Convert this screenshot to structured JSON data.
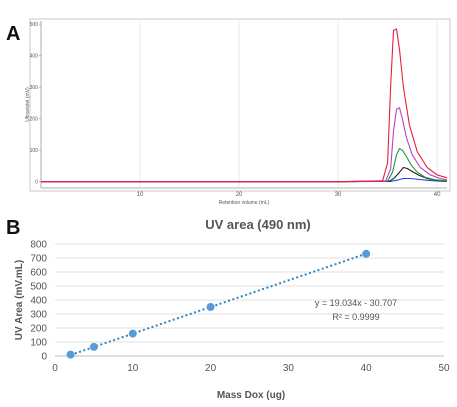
{
  "panels": {
    "a_label": "A",
    "b_label": "B"
  },
  "chart_data": [
    {
      "type": "line",
      "panel": "A",
      "title": "",
      "xlabel": "Retention volume (mL)",
      "ylabel": "Ultraviolet (mV)",
      "xlim": [
        0,
        41
      ],
      "ylim": [
        -20,
        510
      ],
      "xticks": [
        10,
        20,
        30,
        40
      ],
      "yticks": [
        0,
        100,
        200,
        300,
        400,
        500
      ],
      "grid": "vertical",
      "legend": "none",
      "series": [
        {
          "color": "#e8203a",
          "x": [
            0,
            10,
            20,
            30,
            34.5,
            35.0,
            35.3,
            35.6,
            35.9,
            36.2,
            36.6,
            37.2,
            38.0,
            39.0,
            40.0,
            41.0
          ],
          "y": [
            0,
            0,
            0,
            0,
            3,
            60,
            300,
            480,
            485,
            420,
            300,
            180,
            95,
            45,
            22,
            12
          ]
        },
        {
          "color": "#c040c0",
          "x": [
            0,
            10,
            20,
            30,
            34.8,
            35.3,
            35.6,
            35.9,
            36.2,
            36.5,
            36.9,
            37.5,
            38.3,
            39.3,
            40.3,
            41.0
          ],
          "y": [
            0,
            0,
            0,
            0,
            2,
            40,
            160,
            230,
            235,
            200,
            140,
            85,
            45,
            22,
            10,
            6
          ]
        },
        {
          "color": "#1f9a3a",
          "x": [
            0,
            10,
            20,
            30,
            35.0,
            35.5,
            35.9,
            36.2,
            36.5,
            36.9,
            37.4,
            38.0,
            38.8,
            39.8,
            41.0
          ],
          "y": [
            0,
            0,
            0,
            0,
            2,
            30,
            85,
            105,
            100,
            80,
            52,
            30,
            14,
            6,
            3
          ]
        },
        {
          "color": "#202020",
          "x": [
            0,
            10,
            20,
            30,
            35.2,
            35.7,
            36.2,
            36.6,
            37.0,
            37.5,
            38.2,
            39.0,
            40.0,
            41.0
          ],
          "y": [
            0,
            0,
            0,
            0,
            2,
            12,
            30,
            45,
            42,
            32,
            20,
            10,
            4,
            2
          ]
        },
        {
          "color": "#2244dd",
          "x": [
            0,
            10,
            20,
            30,
            35.3,
            36.0,
            36.6,
            37.3,
            38.2,
            39.2,
            40.2,
            41.0
          ],
          "y": [
            0,
            0,
            0,
            0,
            1,
            5,
            10,
            10,
            7,
            4,
            2,
            1
          ]
        }
      ]
    },
    {
      "type": "scatter",
      "panel": "B",
      "title": "UV area (490 nm)",
      "xlabel": "Mass Dox (ug)",
      "ylabel": "UV Area (mV.mL)",
      "xlim": [
        0,
        50
      ],
      "ylim": [
        0,
        800
      ],
      "xticks": [
        0,
        10,
        20,
        30,
        40,
        50
      ],
      "yticks": [
        0,
        100,
        200,
        300,
        400,
        500,
        600,
        700,
        800
      ],
      "grid": "horizontal",
      "legend": "none",
      "series": [
        {
          "color": "#5b9bd5",
          "x": [
            2,
            5,
            10,
            20,
            40
          ],
          "y": [
            10,
            65,
            160,
            350,
            730
          ]
        }
      ],
      "trendline": {
        "slope": 19.034,
        "intercept": -30.707,
        "x_start": 2,
        "x_end": 40,
        "color": "#2e86c1"
      },
      "annotation": {
        "equation": "y = 19.034x - 30.707",
        "r2": "R² = 0.9999"
      }
    }
  ]
}
